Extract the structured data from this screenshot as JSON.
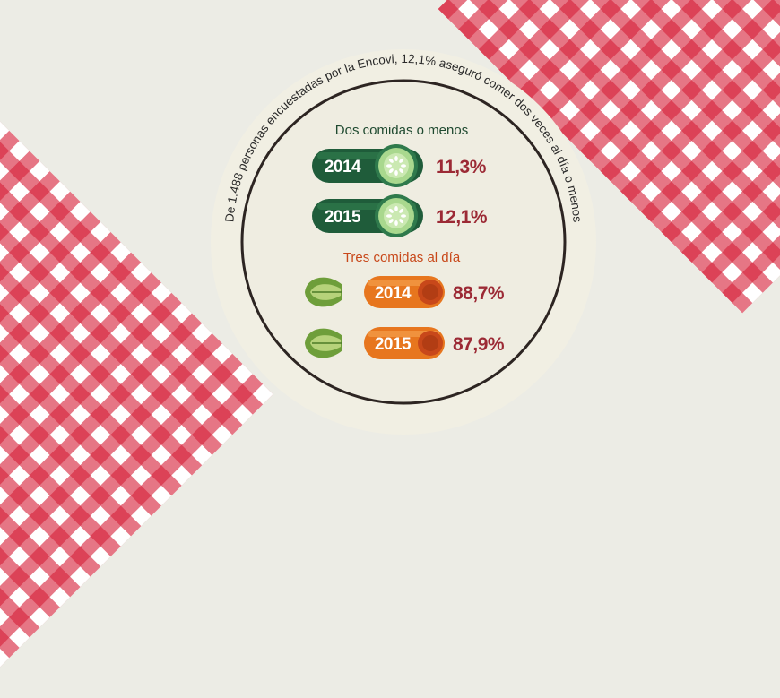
{
  "chart_data": {
    "type": "bar",
    "curved_caption": "De 1.488 personas encuestadas por la Encovi, 12,1% aseguró comer dos veces al día o menos",
    "groups": [
      {
        "title": "Dos comidas o menos",
        "icon": "cucumber-icon",
        "color": "#1f5c3a",
        "items": [
          {
            "year": "2014",
            "value": 11.3,
            "label": "11,3%"
          },
          {
            "year": "2015",
            "value": 12.1,
            "label": "12,1%"
          }
        ]
      },
      {
        "title": "Tres comidas al día",
        "icon": "carrot-icon",
        "color": "#c8481a",
        "items": [
          {
            "year": "2014",
            "value": 88.7,
            "label": "88,7%"
          },
          {
            "year": "2015",
            "value": 87.9,
            "label": "87,9%"
          }
        ]
      }
    ]
  },
  "colors": {
    "tablecloth_red": "#d6223a",
    "cucumber_green": "#1f5c3a",
    "carrot_orange": "#e7761e",
    "percent_text": "#9c2a35",
    "plate": "#f1efe3"
  }
}
